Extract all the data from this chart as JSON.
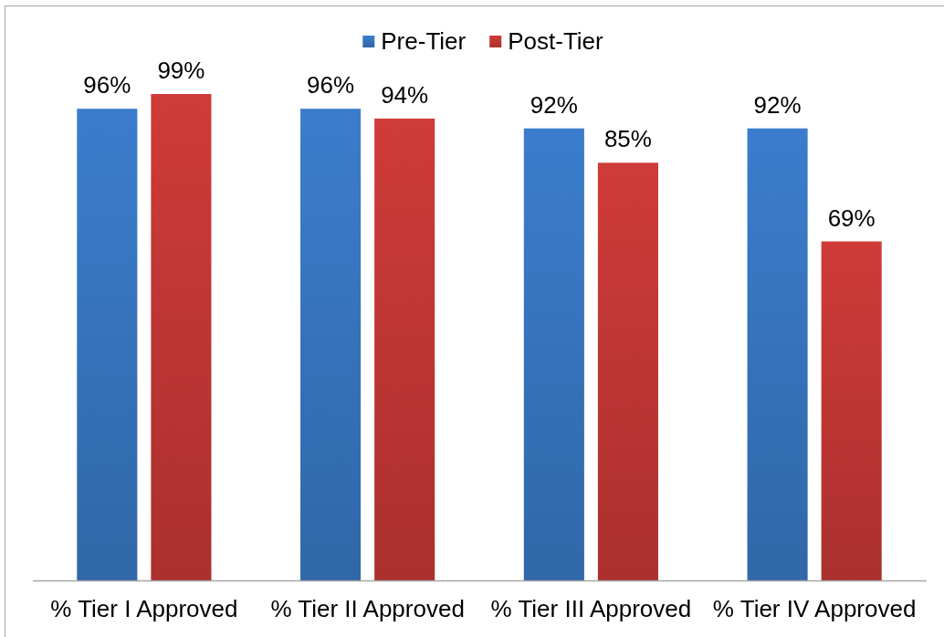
{
  "chart_data": {
    "type": "bar",
    "categories": [
      "% Tier I Approved",
      "% Tier II Approved",
      "% Tier III Approved",
      "% Tier IV Approved"
    ],
    "series": [
      {
        "name": "Pre-Tier",
        "color": "#3b7dcc",
        "values": [
          96,
          96,
          92,
          92
        ],
        "value_labels": [
          "96%",
          "96%",
          "92%",
          "92%"
        ]
      },
      {
        "name": "Post-Tier",
        "color": "#cf3b38",
        "values": [
          99,
          94,
          85,
          69
        ],
        "value_labels": [
          "99%",
          "94%",
          "85%",
          "69%"
        ]
      }
    ],
    "legend": "top",
    "tick_labels": "x"
  }
}
